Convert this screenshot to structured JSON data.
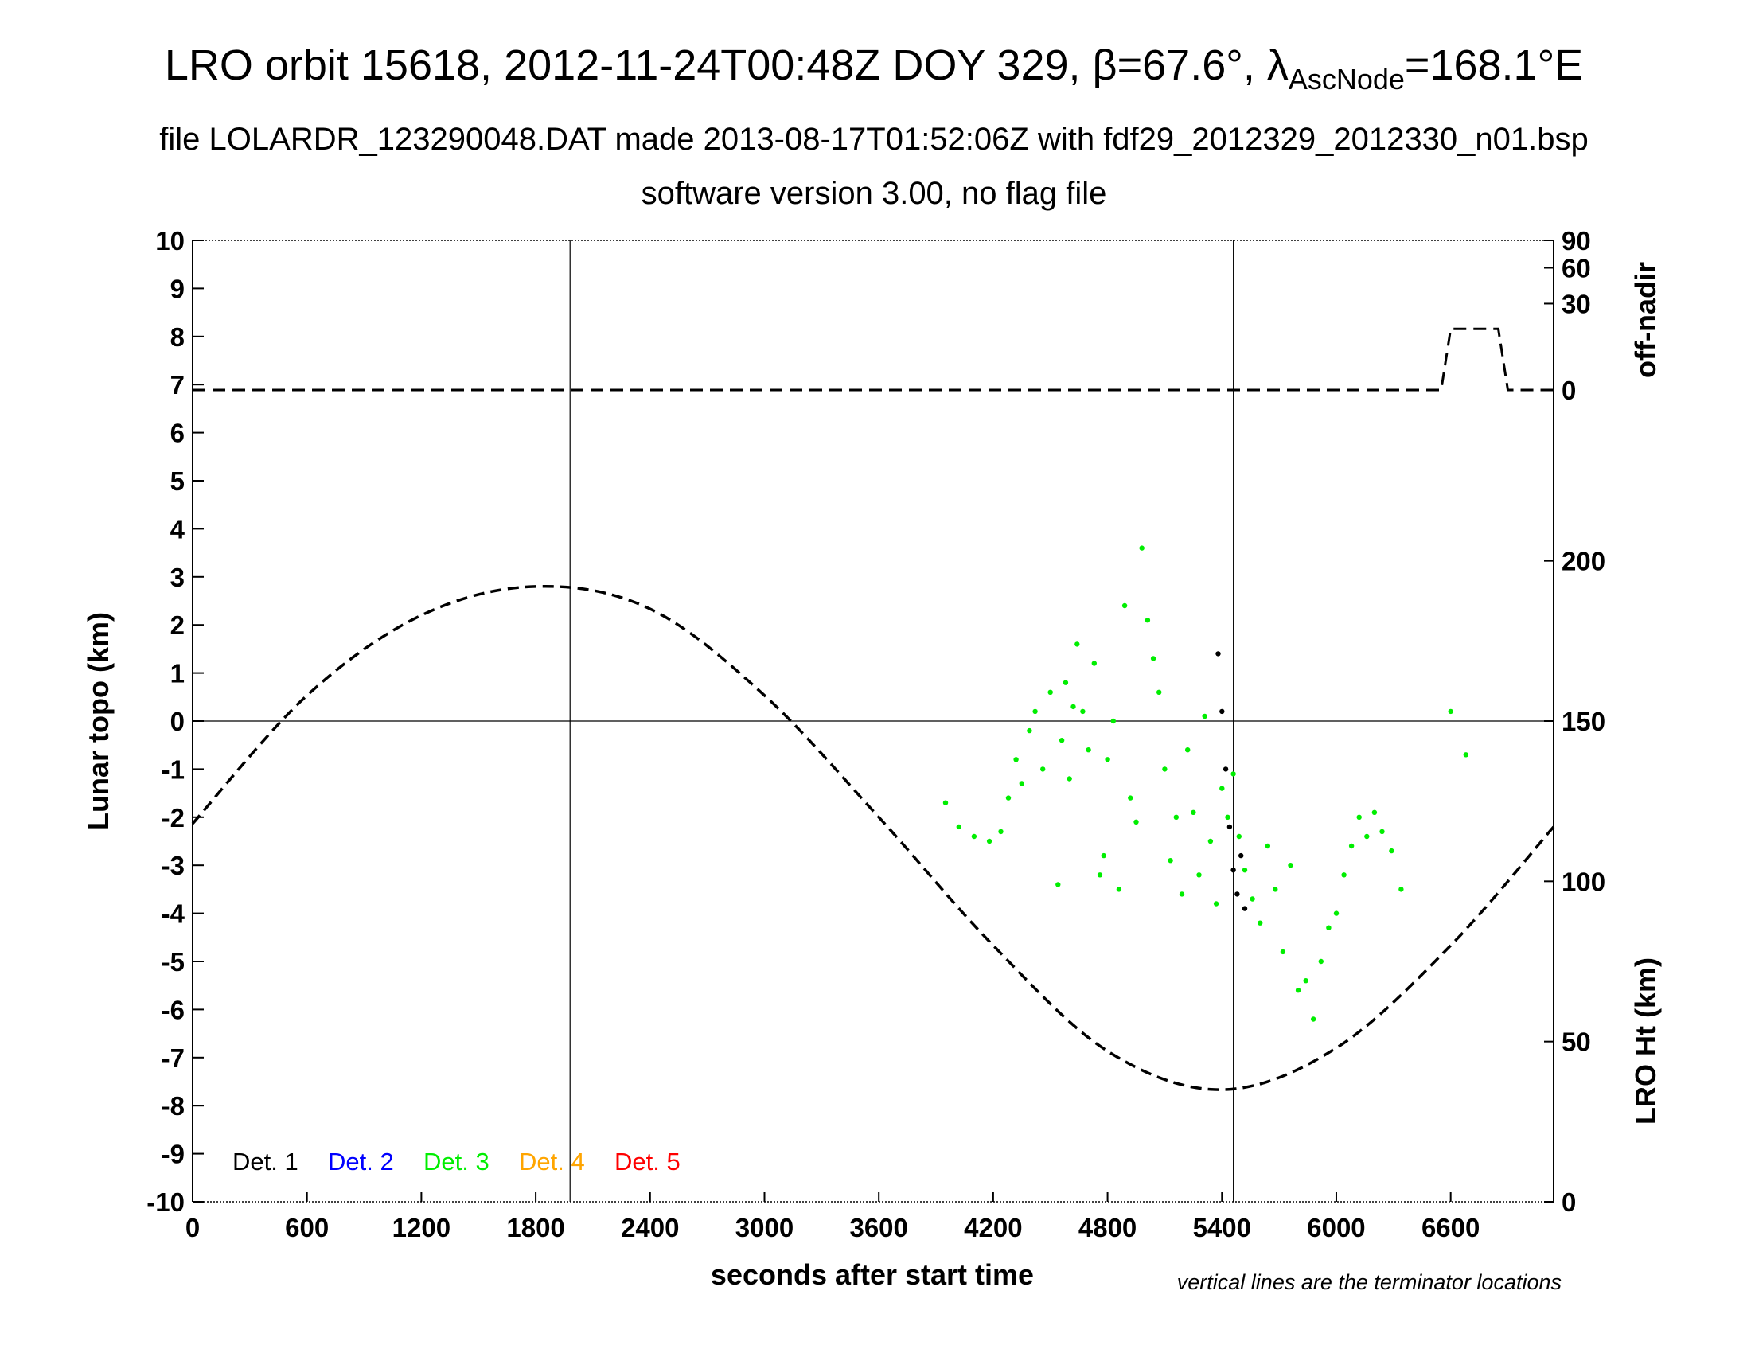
{
  "chart_data": {
    "type": "scatter",
    "title_main": "LRO orbit 15618, 2012-11-24T00:48Z DOY 329, β=67.6°, λ",
    "title_sub": "AscNode",
    "title_end": "=168.1°E",
    "subtitle": "file LOLARDR_123290048.DAT made 2013-08-17T01:52:06Z with fdf29_2012329_2012330_n01.bsp",
    "subtitle2": "software version 3.00, no flag file",
    "xlabel": "seconds after start time",
    "ylabel_left": "Lunar topo (km)",
    "ylabel_right_top": "off-nadir",
    "ylabel_right_bottom": "LRO Ht (km)",
    "note": "vertical lines are the terminator locations",
    "xlim": [
      0,
      7140
    ],
    "ylim": [
      -10,
      10
    ],
    "x_ticks": [
      "0",
      "600",
      "1200",
      "1800",
      "2400",
      "3000",
      "3600",
      "4200",
      "4800",
      "5400",
      "6000",
      "6600"
    ],
    "y_ticks_left": [
      "-10",
      "-9",
      "-8",
      "-7",
      "-6",
      "-5",
      "-4",
      "-3",
      "-2",
      "-1",
      "0",
      "1",
      "2",
      "3",
      "4",
      "5",
      "6",
      "7",
      "8",
      "9",
      "10"
    ],
    "y_ticks_right_offnadir": [
      "0",
      "30",
      "60",
      "90"
    ],
    "y_ticks_right_height": [
      "0",
      "50",
      "100",
      "150",
      "200"
    ],
    "offnadir_lim": [
      0,
      90
    ],
    "height_lim": [
      0,
      300
    ],
    "terminator_lines_x": [
      1980,
      5460
    ],
    "grid": false,
    "legend_position": "bottom-left",
    "legend": [
      {
        "label": "Det. 1",
        "color": "#000000"
      },
      {
        "label": "Det. 2",
        "color": "#0000ff"
      },
      {
        "label": "Det. 3",
        "color": "#00ee00"
      },
      {
        "label": "Det. 4",
        "color": "#ffa500"
      },
      {
        "label": "Det. 5",
        "color": "#ff0000"
      }
    ],
    "series": [
      {
        "name": "Det. 3",
        "x": [
          3950,
          4020,
          4100,
          4180,
          4240,
          4280,
          4320,
          4350,
          4390,
          4420,
          4460,
          4500,
          4540,
          4560,
          4580,
          4600,
          4620,
          4640,
          4670,
          4700,
          4730,
          4760,
          4780,
          4800,
          4830,
          4860,
          4890,
          4920,
          4950,
          4980,
          5010,
          5040,
          5070,
          5100,
          5130,
          5160,
          5190,
          5220,
          5250,
          5280,
          5310,
          5340,
          5370,
          5400,
          5430,
          5460,
          5490,
          5520,
          5560,
          5600,
          5640,
          5680,
          5720,
          5760,
          5800,
          5840,
          5880,
          5920,
          5960,
          6000,
          6040,
          6080,
          6120,
          6160,
          6200,
          6240,
          6290,
          6340,
          6600,
          6680
        ],
        "y": [
          -1.7,
          -2.2,
          -2.4,
          -2.5,
          -2.3,
          -1.6,
          -0.8,
          -1.3,
          -0.2,
          0.2,
          -1.0,
          0.6,
          -3.4,
          -0.4,
          0.8,
          -1.2,
          0.3,
          1.6,
          0.2,
          -0.6,
          1.2,
          -3.2,
          -2.8,
          -0.8,
          0.0,
          -3.5,
          2.4,
          -1.6,
          -2.1,
          3.6,
          2.1,
          1.3,
          0.6,
          -1.0,
          -2.9,
          -2.0,
          -3.6,
          -0.6,
          -1.9,
          -3.2,
          0.1,
          -2.5,
          -3.8,
          -1.4,
          -2.0,
          -1.1,
          -2.4,
          -3.1,
          -3.7,
          -4.2,
          -2.6,
          -3.5,
          -4.8,
          -3.0,
          -5.6,
          -5.4,
          -6.2,
          -5.0,
          -4.3,
          -4.0,
          -3.2,
          -2.6,
          -2.0,
          -2.4,
          -1.9,
          -2.3,
          -2.7,
          -3.5,
          0.2,
          -0.7
        ]
      },
      {
        "name": "Det. 1",
        "x": [
          5380,
          5400,
          5420,
          5440,
          5460,
          5480,
          5500,
          5520
        ],
        "y": [
          1.4,
          0.2,
          -1.0,
          -2.2,
          -3.1,
          -3.6,
          -2.8,
          -3.9
        ]
      }
    ],
    "offnadir_trace": {
      "x": [
        0,
        6500,
        6550,
        6600,
        6850,
        6900,
        6950,
        7140
      ],
      "y": [
        0,
        0,
        0,
        15,
        15,
        0,
        0,
        0
      ]
    },
    "height_trace": {
      "x": [
        0,
        600,
        1200,
        1800,
        2400,
        3000,
        3600,
        4200,
        4800,
        5400,
        6000,
        6600,
        7140
      ],
      "y": [
        118,
        158,
        183,
        192,
        185,
        158,
        120,
        80,
        47,
        35,
        48,
        80,
        117
      ]
    }
  }
}
